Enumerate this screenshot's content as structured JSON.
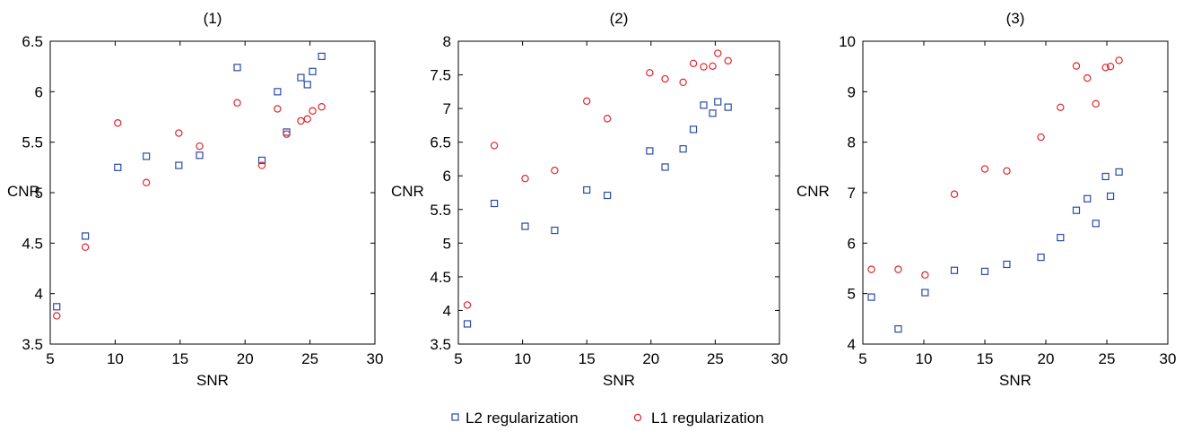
{
  "legend": [
    {
      "label": "L2 regularization",
      "marker": "square",
      "color": "#2a4aa8"
    },
    {
      "label": "L1 regularization",
      "marker": "circle",
      "color": "#e0262b"
    }
  ],
  "chart_data": [
    {
      "type": "scatter",
      "title": "(1)",
      "xlabel": "SNR",
      "ylabel": "CNR",
      "xlim": [
        5,
        30
      ],
      "ylim": [
        3.5,
        6.5
      ],
      "xticks": [
        5,
        10,
        15,
        20,
        25,
        30
      ],
      "yticks": [
        3.5,
        4,
        4.5,
        5,
        5.5,
        6,
        6.5
      ],
      "grid": false,
      "legend_position": "bottom-center",
      "series": [
        {
          "name": "L2 regularization",
          "marker": "square",
          "color": "#2a4aa8",
          "points": [
            [
              5.5,
              3.87
            ],
            [
              7.7,
              4.57
            ],
            [
              10.2,
              5.25
            ],
            [
              12.4,
              5.36
            ],
            [
              14.9,
              5.27
            ],
            [
              16.5,
              5.37
            ],
            [
              19.4,
              6.24
            ],
            [
              21.3,
              5.32
            ],
            [
              22.5,
              6.0
            ],
            [
              23.2,
              5.6
            ],
            [
              24.3,
              6.14
            ],
            [
              24.8,
              6.07
            ],
            [
              25.2,
              6.2
            ],
            [
              25.9,
              6.35
            ]
          ]
        },
        {
          "name": "L1 regularization",
          "marker": "circle",
          "color": "#e0262b",
          "points": [
            [
              5.5,
              3.78
            ],
            [
              7.7,
              4.46
            ],
            [
              10.2,
              5.69
            ],
            [
              12.4,
              5.1
            ],
            [
              14.9,
              5.59
            ],
            [
              16.5,
              5.46
            ],
            [
              19.4,
              5.89
            ],
            [
              21.3,
              5.27
            ],
            [
              22.5,
              5.83
            ],
            [
              23.2,
              5.58
            ],
            [
              24.3,
              5.71
            ],
            [
              24.8,
              5.73
            ],
            [
              25.2,
              5.81
            ],
            [
              25.9,
              5.85
            ]
          ]
        }
      ]
    },
    {
      "type": "scatter",
      "title": "(2)",
      "xlabel": "SNR",
      "ylabel": "CNR",
      "xlim": [
        5,
        30
      ],
      "ylim": [
        3.5,
        8
      ],
      "xticks": [
        5,
        10,
        15,
        20,
        25,
        30
      ],
      "yticks": [
        3.5,
        4,
        4.5,
        5,
        5.5,
        6,
        6.5,
        7,
        7.5,
        8
      ],
      "grid": false,
      "legend_position": "bottom-center",
      "series": [
        {
          "name": "L2 regularization",
          "marker": "square",
          "color": "#2a4aa8",
          "points": [
            [
              5.7,
              3.8
            ],
            [
              7.8,
              5.59
            ],
            [
              10.2,
              5.25
            ],
            [
              12.5,
              5.19
            ],
            [
              15.0,
              5.79
            ],
            [
              16.6,
              5.71
            ],
            [
              19.9,
              6.37
            ],
            [
              21.1,
              6.13
            ],
            [
              22.5,
              6.4
            ],
            [
              23.3,
              6.69
            ],
            [
              24.1,
              7.05
            ],
            [
              24.8,
              6.93
            ],
            [
              25.2,
              7.1
            ],
            [
              26.0,
              7.02
            ]
          ]
        },
        {
          "name": "L1 regularization",
          "marker": "circle",
          "color": "#e0262b",
          "points": [
            [
              5.7,
              4.08
            ],
            [
              7.8,
              6.45
            ],
            [
              10.2,
              5.96
            ],
            [
              12.5,
              6.08
            ],
            [
              15.0,
              7.11
            ],
            [
              16.6,
              6.85
            ],
            [
              19.9,
              7.53
            ],
            [
              21.1,
              7.44
            ],
            [
              22.5,
              7.39
            ],
            [
              23.3,
              7.67
            ],
            [
              24.1,
              7.62
            ],
            [
              24.8,
              7.63
            ],
            [
              25.2,
              7.82
            ],
            [
              26.0,
              7.71
            ]
          ]
        }
      ]
    },
    {
      "type": "scatter",
      "title": "(3)",
      "xlabel": "SNR",
      "ylabel": "CNR",
      "xlim": [
        5,
        30
      ],
      "ylim": [
        4,
        10
      ],
      "xticks": [
        5,
        10,
        15,
        20,
        25,
        30
      ],
      "yticks": [
        4,
        5,
        6,
        7,
        8,
        9,
        10
      ],
      "grid": false,
      "legend_position": "bottom-center",
      "series": [
        {
          "name": "L2 regularization",
          "marker": "square",
          "color": "#2a4aa8",
          "points": [
            [
              5.7,
              4.93
            ],
            [
              7.9,
              4.3
            ],
            [
              10.1,
              5.02
            ],
            [
              12.5,
              5.46
            ],
            [
              15.0,
              5.44
            ],
            [
              16.8,
              5.58
            ],
            [
              19.6,
              5.72
            ],
            [
              21.2,
              6.11
            ],
            [
              22.5,
              6.65
            ],
            [
              23.4,
              6.88
            ],
            [
              24.1,
              6.39
            ],
            [
              24.9,
              7.32
            ],
            [
              25.3,
              6.93
            ],
            [
              26.0,
              7.41
            ]
          ]
        },
        {
          "name": "L1 regularization",
          "marker": "circle",
          "color": "#e0262b",
          "points": [
            [
              5.7,
              5.48
            ],
            [
              7.9,
              5.48
            ],
            [
              10.1,
              5.37
            ],
            [
              12.5,
              6.97
            ],
            [
              15.0,
              7.47
            ],
            [
              16.8,
              7.43
            ],
            [
              19.6,
              8.1
            ],
            [
              21.2,
              8.69
            ],
            [
              22.5,
              9.51
            ],
            [
              23.4,
              9.27
            ],
            [
              24.1,
              8.76
            ],
            [
              24.9,
              9.48
            ],
            [
              25.3,
              9.5
            ],
            [
              26.0,
              9.62
            ]
          ]
        }
      ]
    }
  ]
}
